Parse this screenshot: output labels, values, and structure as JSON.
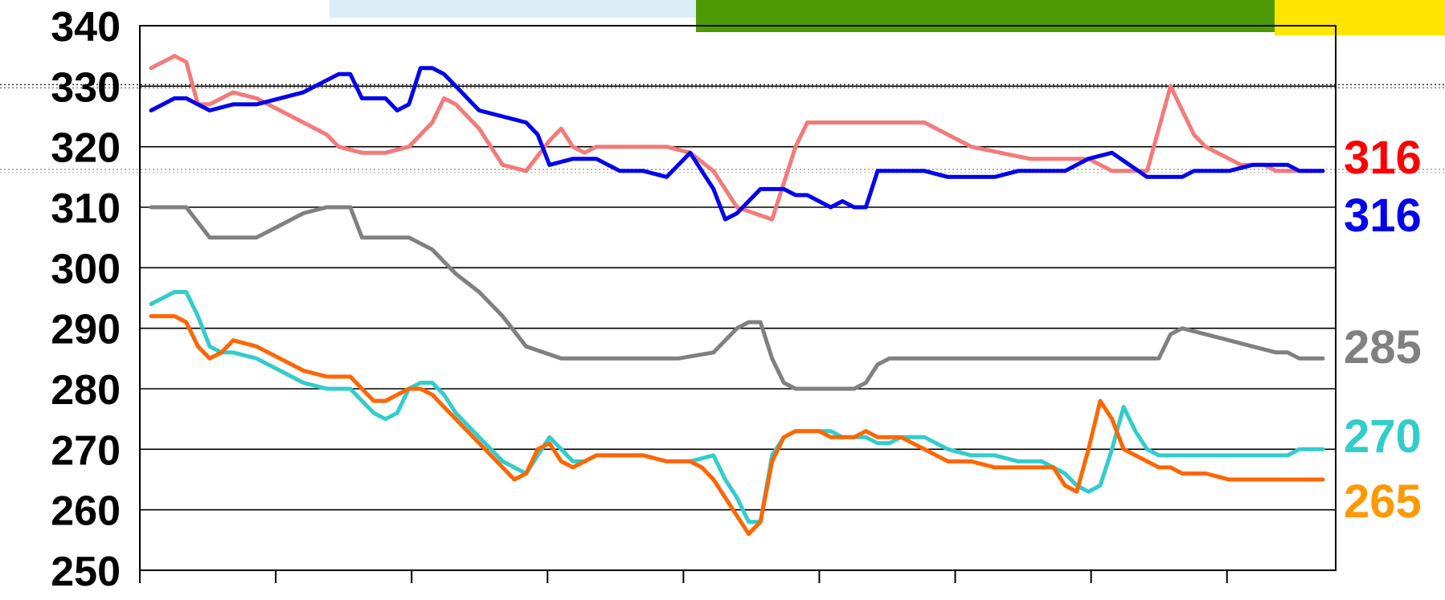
{
  "chart_data": {
    "type": "line",
    "title": "",
    "xlabel": "",
    "ylabel": "",
    "ylim": [
      250,
      340
    ],
    "yticks": [
      340,
      330,
      320,
      310,
      300,
      290,
      280,
      270,
      260,
      250
    ],
    "x_range": [
      0,
      100
    ],
    "x_tick_count": 9,
    "grid": "horizontal",
    "background_bands": [
      {
        "color": "#dbeef8"
      },
      {
        "color": "#4e9a06"
      },
      {
        "color": "#ffe600"
      }
    ],
    "reference_lines": [
      {
        "y": 330,
        "color": "#000000",
        "style": "dotted"
      },
      {
        "y": 316,
        "color": "#888888",
        "style": "dotted"
      }
    ],
    "series": [
      {
        "color": "#f47a7a",
        "end_label": "316",
        "label_color": "#ff0000",
        "x": [
          0,
          2,
          3,
          4,
          5,
          6,
          7,
          9,
          11,
          13,
          15,
          16,
          18,
          20,
          22,
          24,
          25,
          26,
          27,
          28,
          29,
          30,
          32,
          34,
          35,
          36,
          37,
          38,
          39,
          40,
          41,
          42,
          43,
          44,
          46,
          48,
          50,
          53,
          55,
          56,
          57,
          58,
          59,
          60,
          61,
          62,
          63,
          64,
          65,
          66,
          70,
          75,
          77,
          80,
          82,
          85,
          87,
          89,
          90,
          92,
          93,
          94,
          95,
          96,
          97,
          98,
          99,
          100
        ],
        "y": [
          333,
          335,
          334,
          327,
          327,
          328,
          329,
          328,
          326,
          324,
          322,
          320,
          319,
          319,
          320,
          324,
          328,
          327,
          325,
          323,
          320,
          317,
          316,
          321,
          323,
          320,
          319,
          320,
          320,
          320,
          320,
          320,
          320,
          320,
          319,
          316,
          310,
          308,
          320,
          324,
          324,
          324,
          324,
          324,
          324,
          324,
          324,
          324,
          324,
          324,
          320,
          318,
          318,
          318,
          316,
          316,
          330,
          322,
          320,
          318,
          317,
          317,
          317,
          316,
          316,
          316,
          316,
          316
        ]
      },
      {
        "color": "#0000ee",
        "end_label": "316",
        "label_color": "#0000ee",
        "x": [
          0,
          2,
          3,
          5,
          7,
          9,
          11,
          13,
          15,
          16,
          17,
          18,
          19,
          20,
          21,
          22,
          23,
          24,
          25,
          26,
          28,
          30,
          32,
          33,
          34,
          36,
          38,
          39,
          40,
          42,
          44,
          46,
          48,
          49,
          50,
          52,
          53,
          54,
          55,
          56,
          57,
          58,
          59,
          60,
          61,
          62,
          63,
          64,
          65,
          66,
          68,
          70,
          72,
          74,
          76,
          78,
          80,
          82,
          85,
          86,
          87,
          88,
          89,
          90,
          92,
          94,
          96,
          97,
          98,
          99,
          100
        ],
        "y": [
          326,
          328,
          328,
          326,
          327,
          327,
          328,
          329,
          331,
          332,
          332,
          328,
          328,
          328,
          326,
          327,
          333,
          333,
          332,
          330,
          326,
          325,
          324,
          322,
          317,
          318,
          318,
          317,
          316,
          316,
          315,
          319,
          313,
          308,
          309,
          313,
          313,
          313,
          312,
          312,
          311,
          310,
          311,
          310,
          310,
          316,
          316,
          316,
          316,
          316,
          315,
          315,
          315,
          316,
          316,
          316,
          318,
          319,
          315,
          315,
          315,
          315,
          316,
          316,
          316,
          317,
          317,
          317,
          316,
          316,
          316
        ]
      },
      {
        "color": "#808080",
        "end_label": "285",
        "label_color": "#808080",
        "x": [
          0,
          2,
          3,
          5,
          7,
          9,
          11,
          13,
          15,
          17,
          18,
          20,
          22,
          24,
          26,
          28,
          30,
          32,
          35,
          36,
          37,
          38,
          40,
          42,
          45,
          48,
          50,
          51,
          52,
          53,
          54,
          55,
          56,
          57,
          58,
          59,
          60,
          61,
          62,
          63,
          64,
          65,
          66,
          68,
          70,
          72,
          74,
          76,
          78,
          80,
          82,
          84,
          85,
          86,
          87,
          88,
          90,
          92,
          94,
          96,
          97,
          98,
          99,
          100
        ],
        "y": [
          310,
          310,
          310,
          305,
          305,
          305,
          307,
          309,
          310,
          310,
          305,
          305,
          305,
          303,
          299,
          296,
          292,
          287,
          285,
          285,
          285,
          285,
          285,
          285,
          285,
          286,
          290,
          291,
          291,
          285,
          281,
          280,
          280,
          280,
          280,
          280,
          280,
          281,
          284,
          285,
          285,
          285,
          285,
          285,
          285,
          285,
          285,
          285,
          285,
          285,
          285,
          285,
          285,
          285,
          289,
          290,
          289,
          288,
          287,
          286,
          286,
          285,
          285,
          285
        ]
      },
      {
        "color": "#33cccc",
        "end_label": "270",
        "label_color": "#33cccc",
        "x": [
          0,
          1,
          2,
          3,
          4,
          5,
          6,
          7,
          9,
          11,
          13,
          15,
          16,
          17,
          18,
          19,
          20,
          21,
          22,
          23,
          24,
          25,
          26,
          27,
          28,
          29,
          30,
          31,
          32,
          33,
          34,
          35,
          36,
          37,
          38,
          40,
          42,
          44,
          46,
          48,
          49,
          50,
          51,
          52,
          53,
          54,
          55,
          56,
          57,
          58,
          59,
          60,
          61,
          62,
          63,
          64,
          65,
          66,
          67,
          68,
          70,
          72,
          74,
          75,
          76,
          77,
          78,
          79,
          80,
          81,
          82,
          83,
          84,
          85,
          86,
          87,
          88,
          89,
          90,
          92,
          94,
          96,
          97,
          98,
          99,
          100
        ],
        "y": [
          294,
          295,
          296,
          296,
          292,
          287,
          286,
          286,
          285,
          283,
          281,
          280,
          280,
          280,
          278,
          276,
          275,
          276,
          280,
          281,
          281,
          279,
          276,
          274,
          272,
          270,
          268,
          267,
          266,
          269,
          272,
          270,
          268,
          268,
          269,
          269,
          269,
          268,
          268,
          269,
          265,
          262,
          258,
          258,
          269,
          272,
          273,
          273,
          273,
          273,
          272,
          272,
          272,
          271,
          271,
          272,
          272,
          272,
          271,
          270,
          269,
          269,
          268,
          268,
          268,
          267,
          266,
          264,
          263,
          264,
          270,
          277,
          273,
          270,
          269,
          269,
          269,
          269,
          269,
          269,
          269,
          269,
          269,
          270,
          270,
          270
        ]
      },
      {
        "color": "#ff6600",
        "end_label": "265",
        "label_color": "#ff9900",
        "x": [
          0,
          1,
          2,
          3,
          4,
          5,
          6,
          7,
          9,
          11,
          13,
          15,
          16,
          17,
          18,
          19,
          20,
          21,
          22,
          23,
          24,
          25,
          26,
          27,
          28,
          29,
          30,
          31,
          32,
          33,
          34,
          35,
          36,
          37,
          38,
          40,
          42,
          44,
          46,
          47,
          48,
          49,
          50,
          51,
          52,
          53,
          54,
          55,
          56,
          57,
          58,
          59,
          60,
          61,
          62,
          63,
          64,
          65,
          66,
          67,
          68,
          70,
          72,
          74,
          75,
          76,
          77,
          78,
          79,
          80,
          81,
          82,
          83,
          84,
          85,
          86,
          87,
          88,
          89,
          90,
          92,
          94,
          96,
          97,
          98,
          99,
          100
        ],
        "y": [
          292,
          292,
          292,
          291,
          287,
          285,
          286,
          288,
          287,
          285,
          283,
          282,
          282,
          282,
          280,
          278,
          278,
          279,
          280,
          280,
          279,
          277,
          275,
          273,
          271,
          269,
          267,
          265,
          266,
          270,
          271,
          268,
          267,
          268,
          269,
          269,
          269,
          268,
          268,
          267,
          265,
          262,
          259,
          256,
          258,
          268,
          272,
          273,
          273,
          273,
          272,
          272,
          272,
          273,
          272,
          272,
          272,
          271,
          270,
          269,
          268,
          268,
          267,
          267,
          267,
          267,
          267,
          264,
          263,
          270,
          278,
          275,
          270,
          269,
          268,
          267,
          267,
          266,
          266,
          266,
          265,
          265,
          265,
          265,
          265,
          265,
          265
        ]
      }
    ]
  }
}
